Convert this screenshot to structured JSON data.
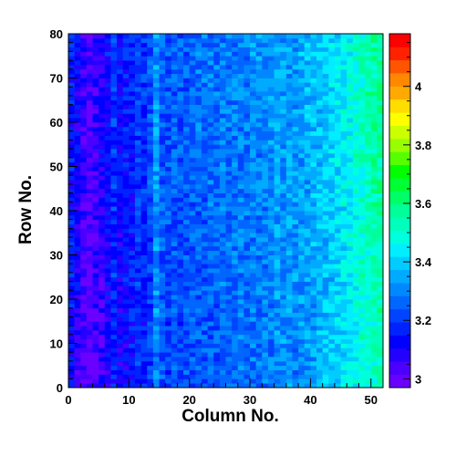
{
  "chart_data": {
    "type": "heatmap",
    "title": "",
    "xlabel": "Column No.",
    "ylabel": "Row No.",
    "x_range": [
      0,
      52
    ],
    "y_range": [
      0,
      80
    ],
    "n_columns": 52,
    "n_rows": 80,
    "x_ticks": [
      "0",
      "10",
      "20",
      "30",
      "40",
      "50"
    ],
    "y_ticks": [
      "0",
      "10",
      "20",
      "30",
      "40",
      "50",
      "60",
      "70",
      "80"
    ],
    "colorbar": {
      "range": [
        2.97,
        4.18
      ],
      "ticks": [
        "3",
        "3.2",
        "3.4",
        "3.6",
        "3.8",
        "4"
      ],
      "palette": [
        "#6a00ff",
        "#4b00ff",
        "#2400ff",
        "#0000ff",
        "#0022ff",
        "#0044ff",
        "#0066ff",
        "#0088ff",
        "#00aaff",
        "#00ccff",
        "#00eeff",
        "#00ffdd",
        "#00ffbb",
        "#00ff99",
        "#00ff66",
        "#00ff33",
        "#00ff00",
        "#55ff00",
        "#99ff00",
        "#ccff00",
        "#ffff00",
        "#ffdd00",
        "#ffaa00",
        "#ff8800",
        "#ff5500",
        "#ff2200",
        "#ff0000"
      ]
    },
    "column_profile": [
      3.15,
      3.1,
      3.05,
      3.02,
      3.06,
      3.08,
      3.12,
      3.18,
      3.12,
      3.14,
      3.16,
      3.2,
      3.18,
      3.22,
      3.32,
      3.24,
      3.22,
      3.24,
      3.22,
      3.24,
      3.25,
      3.26,
      3.25,
      3.27,
      3.26,
      3.28,
      3.27,
      3.28,
      3.29,
      3.28,
      3.3,
      3.29,
      3.3,
      3.31,
      3.33,
      3.32,
      3.33,
      3.32,
      3.34,
      3.35,
      3.36,
      3.37,
      3.38,
      3.4,
      3.42,
      3.44,
      3.46,
      3.48,
      3.5,
      3.52,
      3.54,
      3.55
    ],
    "row_profile_note": "values decrease slightly toward low row numbers",
    "noise_amplitude": 0.07
  }
}
